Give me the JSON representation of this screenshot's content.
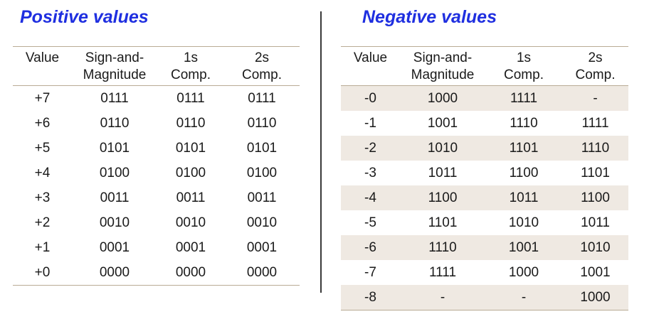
{
  "positive": {
    "title": "Positive values",
    "headers": {
      "value": "Value",
      "sm_line1": "Sign-and-",
      "sm_line2": "Magnitude",
      "c1_line1": "1s",
      "c1_line2": "Comp.",
      "c2_line1": "2s",
      "c2_line2": "Comp."
    },
    "rows": [
      {
        "value": "+7",
        "sm": "0111",
        "c1": "0111",
        "c2": "0111"
      },
      {
        "value": "+6",
        "sm": "0110",
        "c1": "0110",
        "c2": "0110"
      },
      {
        "value": "+5",
        "sm": "0101",
        "c1": "0101",
        "c2": "0101"
      },
      {
        "value": "+4",
        "sm": "0100",
        "c1": "0100",
        "c2": "0100"
      },
      {
        "value": "+3",
        "sm": "0011",
        "c1": "0011",
        "c2": "0011"
      },
      {
        "value": "+2",
        "sm": "0010",
        "c1": "0010",
        "c2": "0010"
      },
      {
        "value": "+1",
        "sm": "0001",
        "c1": "0001",
        "c2": "0001"
      },
      {
        "value": "+0",
        "sm": "0000",
        "c1": "0000",
        "c2": "0000"
      }
    ]
  },
  "negative": {
    "title": "Negative values",
    "headers": {
      "value": "Value",
      "sm_line1": "Sign-and-",
      "sm_line2": "Magnitude",
      "c1_line1": "1s",
      "c1_line2": "Comp.",
      "c2_line1": "2s",
      "c2_line2": "Comp."
    },
    "rows": [
      {
        "value": "-0",
        "sm": "1000",
        "c1": "1111",
        "c2": "-"
      },
      {
        "value": "-1",
        "sm": "1001",
        "c1": "1110",
        "c2": "1111"
      },
      {
        "value": "-2",
        "sm": "1010",
        "c1": "1101",
        "c2": "1110"
      },
      {
        "value": "-3",
        "sm": "1011",
        "c1": "1100",
        "c2": "1101"
      },
      {
        "value": "-4",
        "sm": "1100",
        "c1": "1011",
        "c2": "1100"
      },
      {
        "value": "-5",
        "sm": "1101",
        "c1": "1010",
        "c2": "1011"
      },
      {
        "value": "-6",
        "sm": "1110",
        "c1": "1001",
        "c2": "1010"
      },
      {
        "value": "-7",
        "sm": "1111",
        "c1": "1000",
        "c2": "1001"
      },
      {
        "value": "-8",
        "sm": "-",
        "c1": "-",
        "c2": "1000"
      }
    ]
  },
  "colors": {
    "title": "#1f2fe0",
    "row_shade": "#efe9e2",
    "rule": "#b9ab95",
    "divider": "#3a3a3a"
  }
}
